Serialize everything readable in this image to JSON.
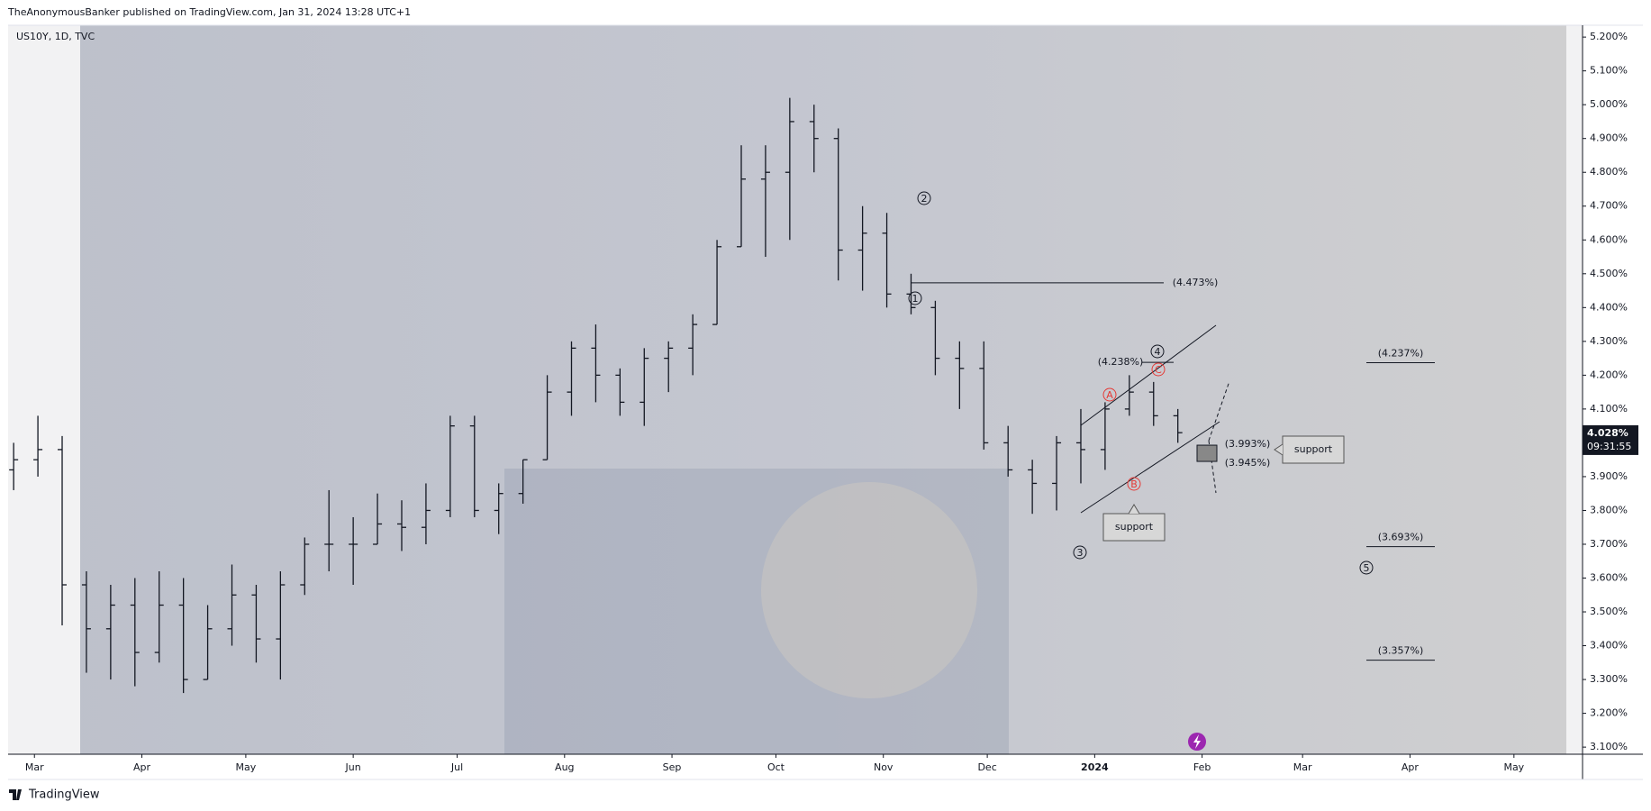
{
  "header": {
    "publisher": "TheAnonymousBanker published on TradingView.com, Jan 31, 2024 13:28 UTC+1",
    "footer": "TradingView"
  },
  "chart_data": {
    "type": "ohlc",
    "title": "US10Y, 1D, TVC",
    "color": "#131722",
    "x": [
      -6,
      1,
      8,
      15,
      22,
      29,
      36,
      43,
      50,
      57,
      64,
      71,
      78,
      85,
      92,
      99,
      106,
      113,
      120,
      127,
      134,
      141,
      148,
      155,
      162,
      169,
      176,
      183,
      190,
      197,
      204,
      211,
      218,
      225,
      232,
      239,
      246,
      253,
      260,
      267,
      274,
      281,
      288,
      295,
      302,
      309,
      316,
      323,
      330
    ],
    "open": [
      3.92,
      3.95,
      3.98,
      3.58,
      3.45,
      3.52,
      3.38,
      3.52,
      3.3,
      3.45,
      3.55,
      3.42,
      3.58,
      3.7,
      3.7,
      3.7,
      3.76,
      3.75,
      3.8,
      4.05,
      3.8,
      3.85,
      3.95,
      4.15,
      4.28,
      4.2,
      4.12,
      4.25,
      4.28,
      4.35,
      4.58,
      4.78,
      4.8,
      4.95,
      4.9,
      4.57,
      4.62,
      4.44,
      4.4,
      4.25,
      4.22,
      4.0,
      3.92,
      3.88,
      4.0,
      3.98,
      4.1,
      4.15,
      4.08
    ],
    "high": [
      4.0,
      4.08,
      4.02,
      3.62,
      3.58,
      3.6,
      3.62,
      3.6,
      3.52,
      3.64,
      3.58,
      3.62,
      3.72,
      3.86,
      3.78,
      3.85,
      3.83,
      3.88,
      4.08,
      4.08,
      3.88,
      3.95,
      4.2,
      4.3,
      4.35,
      4.22,
      4.28,
      4.3,
      4.38,
      4.6,
      4.88,
      4.88,
      5.02,
      5.0,
      4.93,
      4.7,
      4.68,
      4.5,
      4.42,
      4.3,
      4.3,
      4.05,
      3.95,
      4.02,
      4.1,
      4.12,
      4.2,
      4.18,
      4.1
    ],
    "low": [
      3.86,
      3.9,
      3.46,
      3.32,
      3.3,
      3.28,
      3.35,
      3.26,
      3.3,
      3.4,
      3.35,
      3.3,
      3.55,
      3.62,
      3.58,
      3.7,
      3.68,
      3.7,
      3.78,
      3.78,
      3.73,
      3.82,
      3.95,
      4.08,
      4.12,
      4.08,
      4.05,
      4.15,
      4.2,
      4.35,
      4.58,
      4.55,
      4.6,
      4.8,
      4.48,
      4.45,
      4.4,
      4.38,
      4.2,
      4.1,
      3.98,
      3.9,
      3.79,
      3.8,
      3.88,
      3.92,
      4.08,
      4.05,
      4.0
    ],
    "close": [
      3.95,
      3.98,
      3.58,
      3.45,
      3.52,
      3.38,
      3.52,
      3.3,
      3.45,
      3.55,
      3.42,
      3.58,
      3.7,
      3.7,
      3.7,
      3.76,
      3.75,
      3.8,
      4.05,
      3.8,
      3.85,
      3.95,
      4.15,
      4.28,
      4.2,
      4.12,
      4.25,
      4.28,
      4.35,
      4.58,
      4.78,
      4.8,
      4.95,
      4.9,
      4.57,
      4.62,
      4.44,
      4.4,
      4.25,
      4.22,
      4.0,
      3.92,
      3.88,
      4.0,
      3.98,
      4.1,
      4.15,
      4.08,
      4.03
    ],
    "xlim": [
      -7.6,
      446.8
    ],
    "xticks": [
      {
        "value": 0,
        "label": "Mar"
      },
      {
        "value": 31,
        "label": "Apr"
      },
      {
        "value": 61,
        "label": "May"
      },
      {
        "value": 92,
        "label": "Jun"
      },
      {
        "value": 122,
        "label": "Jul"
      },
      {
        "value": 153,
        "label": "Aug"
      },
      {
        "value": 184,
        "label": "Sep"
      },
      {
        "value": 214,
        "label": "Oct"
      },
      {
        "value": 245,
        "label": "Nov"
      },
      {
        "value": 275,
        "label": "Dec"
      },
      {
        "value": 306,
        "label": "2024"
      },
      {
        "value": 337,
        "label": "Feb"
      },
      {
        "value": 366,
        "label": "Mar"
      },
      {
        "value": 397,
        "label": "Apr"
      },
      {
        "value": 427,
        "label": "May"
      }
    ],
    "ylim": [
      3.079,
      5.235
    ],
    "yticks": [
      {
        "value": 3.1,
        "label": "3.100%"
      },
      {
        "value": 3.2,
        "label": "3.200%"
      },
      {
        "value": 3.3,
        "label": "3.300%"
      },
      {
        "value": 3.4,
        "label": "3.400%"
      },
      {
        "value": 3.5,
        "label": "3.500%"
      },
      {
        "value": 3.6,
        "label": "3.600%"
      },
      {
        "value": 3.7,
        "label": "3.700%"
      },
      {
        "value": 3.8,
        "label": "3.800%"
      },
      {
        "value": 3.9,
        "label": "3.900%"
      },
      {
        "value": 4.0,
        "label": "4.000%"
      },
      {
        "value": 4.1,
        "label": "4.100%"
      },
      {
        "value": 4.2,
        "label": "4.200%"
      },
      {
        "value": 4.3,
        "label": "4.300%"
      },
      {
        "value": 4.4,
        "label": "4.400%"
      },
      {
        "value": 4.5,
        "label": "4.500%"
      },
      {
        "value": 4.6,
        "label": "4.600%"
      },
      {
        "value": 4.7,
        "label": "4.700%"
      },
      {
        "value": 4.8,
        "label": "4.800%"
      },
      {
        "value": 4.9,
        "label": "4.900%"
      },
      {
        "value": 5.0,
        "label": "5.000%"
      },
      {
        "value": 5.1,
        "label": "5.100%"
      },
      {
        "value": 5.2,
        "label": "5.200%"
      }
    ],
    "last_price": {
      "value": 4.028,
      "label": "4.028%",
      "countdown": "09:31:55"
    },
    "levels": [
      {
        "value": 4.473,
        "label": "(4.473%)"
      },
      {
        "value": 4.238,
        "label": "(4.238%)"
      },
      {
        "value": 4.237,
        "label": "(4.237%)"
      },
      {
        "value": 3.693,
        "label": "(3.693%)"
      },
      {
        "value": 3.357,
        "label": "(3.357%)"
      },
      {
        "value": 3.993,
        "label": "(3.993%)"
      },
      {
        "value": 3.945,
        "label": "(3.945%)"
      }
    ],
    "callouts": [
      "support",
      "support"
    ],
    "waves": [
      "1",
      "2",
      "3",
      "4",
      "5",
      "A",
      "B",
      "C"
    ]
  }
}
